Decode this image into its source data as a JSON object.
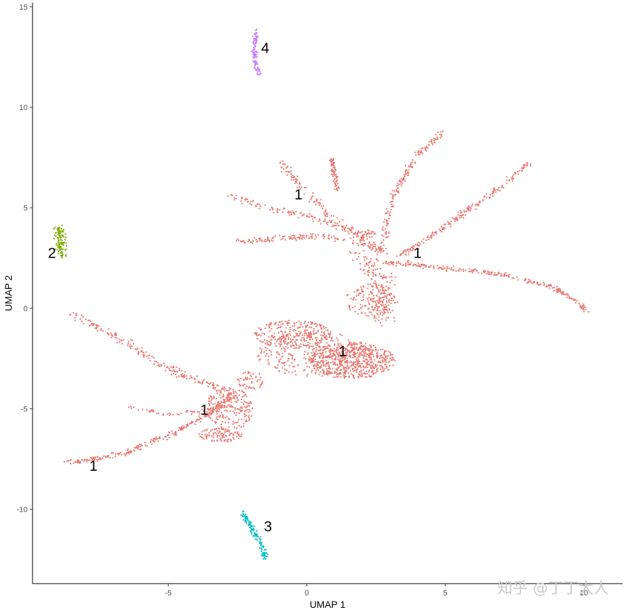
{
  "chart_data": {
    "type": "scatter",
    "xlabel": "UMAP 1",
    "ylabel": "UMAP 2",
    "xlim": [
      -9.9,
      11.4
    ],
    "ylim": [
      -13.7,
      15.2
    ],
    "x_ticks": [
      -5,
      0,
      5,
      10
    ],
    "y_ticks": [
      -10,
      -5,
      0,
      5,
      10,
      15
    ],
    "grid": false,
    "legend": "none",
    "point_size_note": "small points",
    "series": [
      {
        "cluster": "1",
        "color": "#e8776f",
        "segments": [
          {
            "points": [
              [
                -8.6,
                -7.7
              ],
              [
                -6.5,
                -7.2
              ],
              [
                -4.5,
                -6.0
              ],
              [
                -3.2,
                -5.0
              ],
              [
                -2.6,
                -4.2
              ]
            ],
            "n": 260,
            "spread": 0.07
          },
          {
            "points": [
              [
                -8.5,
                -0.3
              ],
              [
                -6.8,
                -1.5
              ],
              [
                -5.5,
                -2.6
              ],
              [
                -4.5,
                -3.3
              ],
              [
                -3.5,
                -3.8
              ],
              [
                -2.6,
                -4.3
              ]
            ],
            "n": 200,
            "spread": 0.09
          },
          {
            "points": [
              [
                -6.4,
                -4.9
              ],
              [
                -5.0,
                -5.3
              ],
              [
                -3.8,
                -5.1
              ],
              [
                -3.0,
                -4.8
              ]
            ],
            "n": 60,
            "spread": 0.06
          },
          {
            "points": [
              [
                -2.8,
                5.6
              ],
              [
                -1.5,
                5.0
              ],
              [
                0.0,
                4.6
              ],
              [
                1.5,
                3.9
              ],
              [
                2.8,
                2.9
              ]
            ],
            "n": 140,
            "spread": 0.08
          },
          {
            "points": [
              [
                -2.5,
                3.3
              ],
              [
                -1.0,
                3.5
              ],
              [
                0.5,
                3.6
              ],
              [
                1.8,
                3.3
              ],
              [
                2.8,
                2.8
              ]
            ],
            "n": 150,
            "spread": 0.07
          },
          {
            "points": [
              [
                -1.1,
                7.4
              ],
              [
                -0.5,
                6.5
              ],
              [
                0.2,
                5.4
              ],
              [
                1.0,
                4.3
              ],
              [
                2.0,
                3.5
              ]
            ],
            "n": 110,
            "spread": 0.1
          },
          {
            "points": [
              [
                0.9,
                7.4
              ],
              [
                1.0,
                6.7
              ],
              [
                1.1,
                5.9
              ]
            ],
            "n": 70,
            "spread": 0.05
          },
          {
            "points": [
              [
                4.9,
                8.8
              ],
              [
                4.0,
                7.6
              ],
              [
                3.2,
                5.8
              ],
              [
                2.9,
                4.5
              ],
              [
                2.8,
                3.2
              ]
            ],
            "n": 170,
            "spread": 0.07
          },
          {
            "points": [
              [
                8.0,
                7.2
              ],
              [
                6.5,
                5.5
              ],
              [
                5.2,
                4.3
              ],
              [
                4.2,
                3.3
              ],
              [
                3.3,
                2.6
              ]
            ],
            "n": 200,
            "spread": 0.07
          },
          {
            "points": [
              [
                2.9,
                2.3
              ],
              [
                5.0,
                2.0
              ],
              [
                7.0,
                1.7
              ],
              [
                8.8,
                1.1
              ],
              [
                9.7,
                0.4
              ],
              [
                10.1,
                -0.2
              ]
            ],
            "n": 260,
            "spread": 0.06
          },
          {
            "points": [
              [
                2.0,
                2.9
              ],
              [
                2.6,
                1.6
              ],
              [
                2.8,
                0.5
              ],
              [
                2.7,
                -0.5
              ]
            ],
            "n": 180,
            "spread": 0.25
          }
        ],
        "blobs": [
          {
            "center": [
              -0.5,
              -1.3
            ],
            "rx": 1.4,
            "ry": 0.7,
            "n": 260
          },
          {
            "center": [
              1.6,
              -2.6
            ],
            "rx": 1.6,
            "ry": 0.9,
            "n": 620
          },
          {
            "center": [
              0.3,
              -2.3
            ],
            "rx": 2.1,
            "ry": 1.1,
            "n": 300
          },
          {
            "center": [
              2.3,
              0.4
            ],
            "rx": 0.9,
            "ry": 0.8,
            "n": 130
          },
          {
            "center": [
              -2.8,
              -5.0
            ],
            "rx": 0.85,
            "ry": 1.1,
            "n": 220
          },
          {
            "center": [
              -3.1,
              -6.3
            ],
            "rx": 0.8,
            "ry": 0.35,
            "n": 100
          },
          {
            "center": [
              -2.0,
              -3.6
            ],
            "rx": 0.5,
            "ry": 0.5,
            "n": 50
          },
          {
            "center": [
              2.1,
              3.7
            ],
            "rx": 0.4,
            "ry": 0.2,
            "n": 40
          }
        ],
        "labels": [
          {
            "text": "1",
            "x": -0.3,
            "y": 5.6
          },
          {
            "text": "1",
            "x": 4.0,
            "y": 2.7
          },
          {
            "text": "1",
            "x": 1.3,
            "y": -2.2
          },
          {
            "text": "1",
            "x": -3.7,
            "y": -5.1
          },
          {
            "text": "1",
            "x": -7.7,
            "y": -7.9
          }
        ]
      },
      {
        "cluster": "2",
        "color": "#7cae00",
        "segments": [
          {
            "points": [
              [
                -8.9,
                4.0
              ],
              [
                -8.9,
                3.3
              ],
              [
                -8.85,
                2.6
              ]
            ],
            "n": 110,
            "spread": 0.1
          }
        ],
        "labels": [
          {
            "text": "2",
            "x": -9.2,
            "y": 2.7
          }
        ]
      },
      {
        "cluster": "3",
        "color": "#00bfc4",
        "segments": [
          {
            "points": [
              [
                -2.3,
                -10.2
              ],
              [
                -2.0,
                -10.9
              ],
              [
                -1.7,
                -11.6
              ],
              [
                -1.5,
                -12.4
              ]
            ],
            "n": 120,
            "spread": 0.06
          }
        ],
        "labels": [
          {
            "text": "3",
            "x": -1.4,
            "y": -10.9
          }
        ]
      },
      {
        "cluster": "4",
        "color": "#c77cff",
        "segments": [
          {
            "points": [
              [
                -1.8,
                13.8
              ],
              [
                -1.9,
                13.0
              ],
              [
                -1.85,
                12.2
              ],
              [
                -1.7,
                11.6
              ]
            ],
            "n": 110,
            "spread": 0.05
          }
        ],
        "labels": [
          {
            "text": "4",
            "x": -1.5,
            "y": 12.9
          }
        ]
      }
    ]
  },
  "watermark": "知乎 @丁丁大人"
}
